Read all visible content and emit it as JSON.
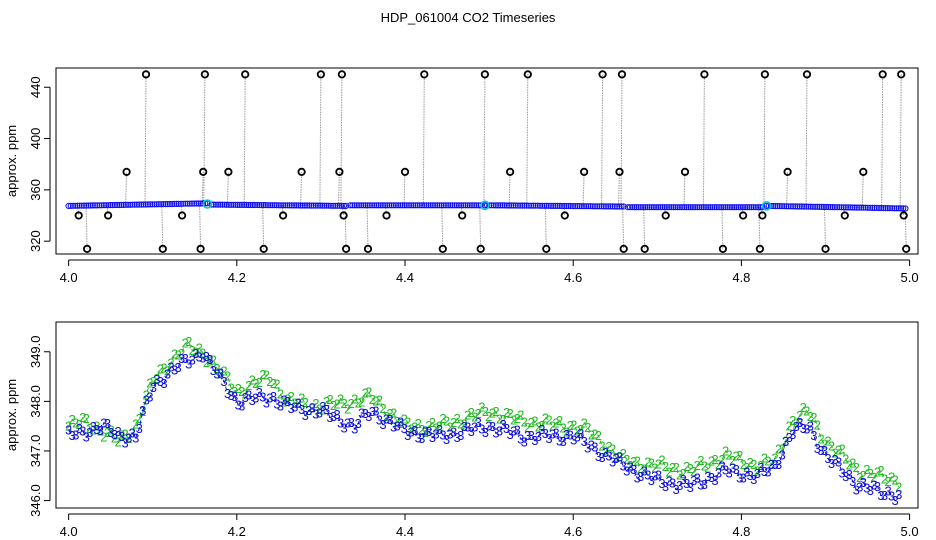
{
  "title": "HDP_061004  CO2 Timeseries",
  "chart_data": [
    {
      "type": "scatter",
      "ylabel": "approx. ppm",
      "xlim": [
        3.985,
        5.01
      ],
      "ylim": [
        310,
        455
      ],
      "xticks": [
        4.0,
        4.2,
        4.4,
        4.6,
        4.8,
        5.0
      ],
      "xtick_labels": [
        "4.0",
        "4.2",
        "4.4",
        "4.6",
        "4.8",
        "5.0"
      ],
      "yticks": [
        320,
        360,
        400,
        440
      ],
      "ytick_labels": [
        "320",
        "360",
        "400",
        "440"
      ],
      "grid": false,
      "colors": {
        "base": "#1010ee",
        "outlier": "#000000",
        "highlight": "#00cccc",
        "line": "#999999"
      },
      "baseline_segments": [
        {
          "x": [
            4.0,
            4.165
          ],
          "y": [
            347.5,
            349.5
          ]
        },
        {
          "x": [
            4.17,
            4.33
          ],
          "y": [
            348.5,
            347.5
          ]
        },
        {
          "x": [
            4.335,
            4.49
          ],
          "y": [
            348.0,
            348.0
          ]
        },
        {
          "x": [
            4.495,
            4.66
          ],
          "y": [
            348.0,
            347.0
          ]
        },
        {
          "x": [
            4.665,
            4.825
          ],
          "y": [
            346.5,
            346.5
          ]
        },
        {
          "x": [
            4.83,
            4.995
          ],
          "y": [
            347.5,
            345.5
          ]
        }
      ],
      "highlights": [
        {
          "x": 4.165,
          "y": 349
        },
        {
          "x": 4.495,
          "y": 348
        },
        {
          "x": 4.83,
          "y": 347.5
        }
      ],
      "outliers": [
        {
          "x": 4.012,
          "y": 340
        },
        {
          "x": 4.022,
          "y": 314
        },
        {
          "x": 4.047,
          "y": 340
        },
        {
          "x": 4.069,
          "y": 374
        },
        {
          "x": 4.092,
          "y": 450
        },
        {
          "x": 4.112,
          "y": 314
        },
        {
          "x": 4.135,
          "y": 340
        },
        {
          "x": 4.157,
          "y": 314
        },
        {
          "x": 4.16,
          "y": 374
        },
        {
          "x": 4.162,
          "y": 450
        },
        {
          "x": 4.19,
          "y": 374
        },
        {
          "x": 4.21,
          "y": 450
        },
        {
          "x": 4.232,
          "y": 314
        },
        {
          "x": 4.255,
          "y": 340
        },
        {
          "x": 4.277,
          "y": 374
        },
        {
          "x": 4.3,
          "y": 450
        },
        {
          "x": 4.322,
          "y": 374
        },
        {
          "x": 4.325,
          "y": 450
        },
        {
          "x": 4.327,
          "y": 340
        },
        {
          "x": 4.33,
          "y": 314
        },
        {
          "x": 4.356,
          "y": 314
        },
        {
          "x": 4.378,
          "y": 340
        },
        {
          "x": 4.4,
          "y": 374
        },
        {
          "x": 4.423,
          "y": 450
        },
        {
          "x": 4.445,
          "y": 314
        },
        {
          "x": 4.468,
          "y": 340
        },
        {
          "x": 4.49,
          "y": 314
        },
        {
          "x": 4.495,
          "y": 450
        },
        {
          "x": 4.525,
          "y": 374
        },
        {
          "x": 4.546,
          "y": 450
        },
        {
          "x": 4.568,
          "y": 314
        },
        {
          "x": 4.59,
          "y": 340
        },
        {
          "x": 4.613,
          "y": 374
        },
        {
          "x": 4.635,
          "y": 450
        },
        {
          "x": 4.655,
          "y": 374
        },
        {
          "x": 4.658,
          "y": 450
        },
        {
          "x": 4.66,
          "y": 314
        },
        {
          "x": 4.685,
          "y": 314
        },
        {
          "x": 4.71,
          "y": 340
        },
        {
          "x": 4.733,
          "y": 374
        },
        {
          "x": 4.756,
          "y": 450
        },
        {
          "x": 4.778,
          "y": 314
        },
        {
          "x": 4.802,
          "y": 340
        },
        {
          "x": 4.822,
          "y": 314
        },
        {
          "x": 4.825,
          "y": 340
        },
        {
          "x": 4.828,
          "y": 450
        },
        {
          "x": 4.855,
          "y": 374
        },
        {
          "x": 4.878,
          "y": 450
        },
        {
          "x": 4.9,
          "y": 314
        },
        {
          "x": 4.923,
          "y": 340
        },
        {
          "x": 4.945,
          "y": 374
        },
        {
          "x": 4.968,
          "y": 450
        },
        {
          "x": 4.99,
          "y": 450
        },
        {
          "x": 4.993,
          "y": 340
        },
        {
          "x": 4.996,
          "y": 314
        }
      ]
    },
    {
      "type": "line",
      "ylabel": "approx. ppm",
      "xlim": [
        3.985,
        5.01
      ],
      "ylim": [
        345.85,
        349.6
      ],
      "xticks": [
        4.0,
        4.2,
        4.4,
        4.6,
        4.8,
        5.0
      ],
      "xtick_labels": [
        "4.0",
        "4.2",
        "4.4",
        "4.6",
        "4.8",
        "5.0"
      ],
      "yticks": [
        346.0,
        347.0,
        348.0,
        349.0
      ],
      "ytick_labels": [
        "346.0",
        "347.0",
        "348.0",
        "349.0"
      ],
      "grid": false,
      "series": [
        {
          "marker": "2",
          "color": "#22bb22",
          "x": [
            4.0,
            4.02,
            4.04,
            4.06,
            4.08,
            4.1,
            4.12,
            4.14,
            4.16,
            4.17,
            4.2,
            4.24,
            4.26,
            4.3,
            4.34,
            4.36,
            4.4,
            4.44,
            4.5,
            4.54,
            4.6,
            4.62,
            4.66,
            4.7,
            4.74,
            4.78,
            4.82,
            4.84,
            4.86,
            4.88,
            4.9,
            4.94,
            4.96,
            4.99
          ],
          "y": [
            347.5,
            347.6,
            347.4,
            347.2,
            347.5,
            348.4,
            348.8,
            349.1,
            349.0,
            348.8,
            348.2,
            348.5,
            348.0,
            347.9,
            348.0,
            348.1,
            347.5,
            347.5,
            347.8,
            347.6,
            347.5,
            347.4,
            346.8,
            346.7,
            346.6,
            346.9,
            346.7,
            346.8,
            347.6,
            347.8,
            347.2,
            346.6,
            346.5,
            346.4
          ]
        },
        {
          "marker": "3",
          "color": "#1010dd",
          "x": [
            4.0,
            4.02,
            4.04,
            4.06,
            4.08,
            4.1,
            4.12,
            4.14,
            4.16,
            4.17,
            4.2,
            4.24,
            4.26,
            4.3,
            4.34,
            4.36,
            4.4,
            4.44,
            4.5,
            4.54,
            4.6,
            4.62,
            4.66,
            4.7,
            4.74,
            4.78,
            4.82,
            4.84,
            4.86,
            4.88,
            4.9,
            4.94,
            4.96,
            4.99
          ],
          "y": [
            347.3,
            347.4,
            347.5,
            347.3,
            347.3,
            348.3,
            348.6,
            348.8,
            349.0,
            348.7,
            348.0,
            348.1,
            347.9,
            347.8,
            347.5,
            347.8,
            347.4,
            347.3,
            347.5,
            347.3,
            347.3,
            347.1,
            346.7,
            346.4,
            346.3,
            346.6,
            346.5,
            346.7,
            347.4,
            347.5,
            346.9,
            346.3,
            346.2,
            346.1
          ]
        }
      ]
    }
  ]
}
